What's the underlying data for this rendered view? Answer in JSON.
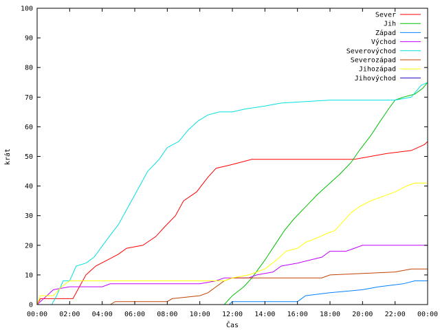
{
  "chart_data": {
    "type": "line",
    "title": "",
    "xlabel": "Čas",
    "ylabel": "krát",
    "xlim": [
      0,
      24
    ],
    "ylim": [
      0,
      100
    ],
    "x_ticks": [
      {
        "v": 0,
        "label": "00:00"
      },
      {
        "v": 2,
        "label": "02:00"
      },
      {
        "v": 4,
        "label": "04:00"
      },
      {
        "v": 6,
        "label": "06:00"
      },
      {
        "v": 8,
        "label": "08:00"
      },
      {
        "v": 10,
        "label": "10:00"
      },
      {
        "v": 12,
        "label": "12:00"
      },
      {
        "v": 14,
        "label": "14:00"
      },
      {
        "v": 16,
        "label": "16:00"
      },
      {
        "v": 18,
        "label": "18:00"
      },
      {
        "v": 20,
        "label": "20:00"
      },
      {
        "v": 22,
        "label": "22:00"
      },
      {
        "v": 24,
        "label": "00:00"
      }
    ],
    "y_ticks": [
      {
        "v": 0,
        "label": "0"
      },
      {
        "v": 10,
        "label": "10"
      },
      {
        "v": 20,
        "label": "20"
      },
      {
        "v": 30,
        "label": "30"
      },
      {
        "v": 40,
        "label": "40"
      },
      {
        "v": 50,
        "label": "50"
      },
      {
        "v": 60,
        "label": "60"
      },
      {
        "v": 70,
        "label": "70"
      },
      {
        "v": 80,
        "label": "80"
      },
      {
        "v": 90,
        "label": "90"
      },
      {
        "v": 100,
        "label": "100"
      }
    ],
    "grid": false,
    "legend_position": "top-right",
    "series": [
      {
        "name": "Sever",
        "color": "#ff0000",
        "points": [
          [
            0,
            0
          ],
          [
            0.2,
            2
          ],
          [
            2.2,
            2
          ],
          [
            2.7,
            7
          ],
          [
            3.0,
            10
          ],
          [
            3.6,
            13
          ],
          [
            4.3,
            15
          ],
          [
            5.0,
            17
          ],
          [
            5.5,
            19
          ],
          [
            6.5,
            20
          ],
          [
            7.3,
            23
          ],
          [
            7.8,
            26
          ],
          [
            8.5,
            30
          ],
          [
            9.0,
            35
          ],
          [
            9.8,
            38
          ],
          [
            10.5,
            43
          ],
          [
            11.0,
            46
          ],
          [
            11.8,
            47
          ],
          [
            12.5,
            48
          ],
          [
            13.2,
            49
          ],
          [
            17.0,
            49
          ],
          [
            19.5,
            49
          ],
          [
            20.5,
            50
          ],
          [
            21.5,
            51
          ],
          [
            23.0,
            52
          ],
          [
            23.8,
            54
          ],
          [
            24.0,
            55
          ]
        ]
      },
      {
        "name": "Jih",
        "color": "#00c000",
        "points": [
          [
            11.5,
            0
          ],
          [
            12.0,
            3
          ],
          [
            12.7,
            6
          ],
          [
            13.2,
            9
          ],
          [
            14.0,
            15
          ],
          [
            14.6,
            20
          ],
          [
            15.2,
            25
          ],
          [
            15.8,
            29
          ],
          [
            16.5,
            33
          ],
          [
            17.2,
            37
          ],
          [
            18.0,
            41
          ],
          [
            18.6,
            44
          ],
          [
            19.3,
            48
          ],
          [
            19.8,
            52
          ],
          [
            20.5,
            57
          ],
          [
            21.1,
            62
          ],
          [
            21.6,
            66
          ],
          [
            22.0,
            69
          ],
          [
            22.5,
            70
          ],
          [
            23.2,
            71
          ],
          [
            23.7,
            73
          ],
          [
            24.0,
            75
          ]
        ]
      },
      {
        "name": "Západ",
        "color": "#0080ff",
        "points": [
          [
            11.8,
            0
          ],
          [
            12.0,
            1
          ],
          [
            16.0,
            1
          ],
          [
            16.5,
            3
          ],
          [
            18.0,
            4
          ],
          [
            20.0,
            5
          ],
          [
            21.0,
            6
          ],
          [
            22.5,
            7
          ],
          [
            23.2,
            8
          ],
          [
            24.0,
            8
          ]
        ]
      },
      {
        "name": "Východ",
        "color": "#c000ff",
        "points": [
          [
            0,
            0
          ],
          [
            0.6,
            3
          ],
          [
            1.0,
            5
          ],
          [
            2.0,
            6
          ],
          [
            4.0,
            6
          ],
          [
            4.5,
            7
          ],
          [
            8.0,
            7
          ],
          [
            10.0,
            7
          ],
          [
            11.0,
            8
          ],
          [
            11.5,
            9
          ],
          [
            13.0,
            9
          ],
          [
            13.5,
            10
          ],
          [
            14.5,
            11
          ],
          [
            15.0,
            13
          ],
          [
            16.0,
            14
          ],
          [
            17.5,
            16
          ],
          [
            18.0,
            18
          ],
          [
            19.0,
            18
          ],
          [
            20.0,
            20
          ],
          [
            24.0,
            20
          ]
        ]
      },
      {
        "name": "Severovýchod",
        "color": "#00e0e0",
        "points": [
          [
            0,
            0
          ],
          [
            0.9,
            0
          ],
          [
            1.2,
            3
          ],
          [
            1.6,
            8
          ],
          [
            2.0,
            8
          ],
          [
            2.4,
            13
          ],
          [
            3.0,
            14
          ],
          [
            3.5,
            16
          ],
          [
            4.3,
            22
          ],
          [
            5.0,
            27
          ],
          [
            5.6,
            33
          ],
          [
            6.3,
            40
          ],
          [
            6.8,
            45
          ],
          [
            7.5,
            49
          ],
          [
            8.0,
            53
          ],
          [
            8.7,
            55
          ],
          [
            9.3,
            59
          ],
          [
            9.9,
            62
          ],
          [
            10.5,
            64
          ],
          [
            11.2,
            65
          ],
          [
            12.0,
            65
          ],
          [
            12.8,
            66
          ],
          [
            14.0,
            67
          ],
          [
            15.0,
            68
          ],
          [
            18.0,
            69
          ],
          [
            20.0,
            69
          ],
          [
            22.0,
            69
          ],
          [
            23.0,
            70
          ],
          [
            23.6,
            74
          ],
          [
            24.0,
            75
          ]
        ]
      },
      {
        "name": "Severozápad",
        "color": "#c04000",
        "points": [
          [
            4.5,
            0
          ],
          [
            4.8,
            1
          ],
          [
            8.0,
            1
          ],
          [
            8.3,
            2
          ],
          [
            10.0,
            3
          ],
          [
            10.5,
            4
          ],
          [
            11.0,
            6
          ],
          [
            11.5,
            8
          ],
          [
            12.0,
            9
          ],
          [
            17.5,
            9
          ],
          [
            18.0,
            10
          ],
          [
            22.0,
            11
          ],
          [
            23.0,
            12
          ],
          [
            24.0,
            12
          ]
        ]
      },
      {
        "name": "Jihozápad",
        "color": "#ffff00",
        "points": [
          [
            0,
            0
          ],
          [
            0.2,
            3
          ],
          [
            1.0,
            3
          ],
          [
            1.5,
            6
          ],
          [
            2.0,
            8
          ],
          [
            5.0,
            8
          ],
          [
            10.0,
            8
          ],
          [
            11.5,
            8
          ],
          [
            12.0,
            9
          ],
          [
            13.0,
            10
          ],
          [
            14.0,
            12
          ],
          [
            14.7,
            15
          ],
          [
            15.3,
            18
          ],
          [
            16.0,
            19
          ],
          [
            16.5,
            21
          ],
          [
            17.0,
            22
          ],
          [
            17.8,
            24
          ],
          [
            18.3,
            25
          ],
          [
            18.8,
            28
          ],
          [
            19.3,
            31
          ],
          [
            19.8,
            33
          ],
          [
            20.5,
            35
          ],
          [
            21.0,
            36
          ],
          [
            22.0,
            38
          ],
          [
            22.7,
            40
          ],
          [
            23.2,
            41
          ],
          [
            24.0,
            41
          ]
        ]
      },
      {
        "name": "Jihovýchod",
        "color": "#2000c0",
        "points": []
      }
    ]
  }
}
